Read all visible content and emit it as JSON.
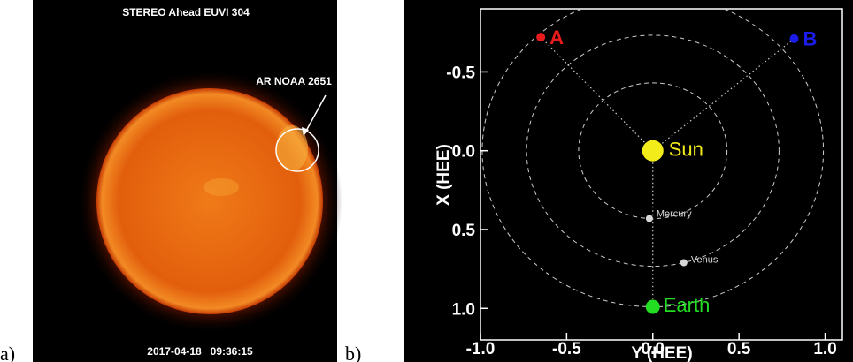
{
  "panel_labels": [
    "a)",
    "b)"
  ],
  "image": {
    "title": "STEREO Ahead EUVI 304",
    "annotation": "AR NOAA 2651",
    "timestamp": "2017-04-18   09:36:15"
  },
  "chart_data": {
    "type": "scatter",
    "xlabel": "Y (HEE)",
    "ylabel": "X (HEE)",
    "xlim": [
      -1.0,
      1.1
    ],
    "ylim": [
      -0.9,
      1.2
    ],
    "y_inverted": true,
    "xticks": [
      {
        "value": -1,
        "label": "-1.0"
      },
      {
        "value": -0.5,
        "label": "-0.5"
      },
      {
        "value": 0,
        "label": "0.0"
      },
      {
        "value": 0.5,
        "label": "0.5"
      },
      {
        "value": 1,
        "label": "1.0"
      }
    ],
    "yticks": [
      {
        "value": -0.5,
        "label": "-0.5"
      },
      {
        "value": 0,
        "label": "0.0"
      },
      {
        "value": 0.5,
        "label": "0.5"
      },
      {
        "value": 1,
        "label": "1.0"
      }
    ],
    "series": [
      {
        "name": "A",
        "color": "#e81c1c",
        "x": [
          -0.65
        ],
        "y": [
          -0.72
        ]
      },
      {
        "name": "B",
        "color": "#1c1ce8",
        "x": [
          0.82
        ],
        "y": [
          -0.71
        ]
      },
      {
        "name": "Sun",
        "color": "#f2ec1a",
        "x": [
          0.0
        ],
        "y": [
          0.0
        ]
      },
      {
        "name": "Mercury",
        "color": "#d8d8d8",
        "x": [
          -0.02
        ],
        "y": [
          0.43
        ]
      },
      {
        "name": "Venus",
        "color": "#d8d8d8",
        "x": [
          0.18
        ],
        "y": [
          0.71
        ]
      },
      {
        "name": "Earth",
        "color": "#22dd22",
        "x": [
          0.0
        ],
        "y": [
          0.99
        ]
      }
    ]
  }
}
